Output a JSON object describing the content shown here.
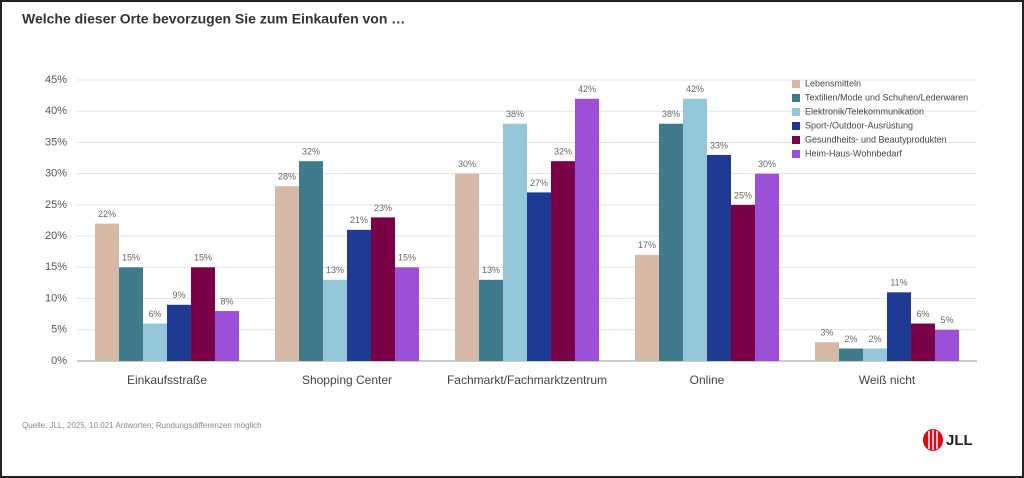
{
  "chart_data": {
    "type": "bar",
    "title": "Welche dieser Orte bevorzugen Sie zum Einkaufen von …",
    "note": "Quelle: JLL, 2025, 10.021 Antworten; Rundungsdifferenzen möglich",
    "categories": [
      "Einkaufsstraße",
      "Shopping Center",
      "Fachmarkt/Fachmarktzentrum",
      "Online",
      "Weiß nicht"
    ],
    "series": [
      {
        "name": "Lebensmitteln",
        "color": "#d5b9a6",
        "values": [
          22,
          28,
          30,
          17,
          3
        ],
        "value_labels": [
          "22%",
          "28%",
          "30%",
          "17%",
          "3%"
        ]
      },
      {
        "name": "Textilien/Mode und Schuhen/Lederwaren",
        "color": "#3f7b8d",
        "values": [
          15,
          32,
          13,
          38,
          2
        ],
        "value_labels": [
          "15%",
          "32%",
          "13%",
          "38%",
          "2%"
        ]
      },
      {
        "name": "Elektronik/Telekommunikation",
        "color": "#94c7d7",
        "values": [
          6,
          13,
          38,
          42,
          2
        ],
        "value_labels": [
          "6%",
          "13%",
          "38%",
          "42%",
          "2%"
        ]
      },
      {
        "name": "Sport-/Outdoor-Ausrüstung",
        "color": "#1f3a93",
        "values": [
          9,
          21,
          27,
          33,
          11
        ],
        "value_labels": [
          "9%",
          "21%",
          "27%",
          "33%",
          "11%"
        ]
      },
      {
        "name": "Gesundheits- und Beautyprodukten",
        "color": "#7a0047",
        "values": [
          15,
          23,
          32,
          25,
          6
        ],
        "value_labels": [
          "15%",
          "23%",
          "32%",
          "25%",
          "6%"
        ]
      },
      {
        "name": "Heim-Haus-Wohnbedarf",
        "color": "#9c50d8",
        "values": [
          8,
          15,
          42,
          30,
          5
        ],
        "value_labels": [
          "8%",
          "15%",
          "42%",
          "30%",
          "5%"
        ]
      }
    ],
    "ylim": [
      0,
      45
    ],
    "yticks": [
      {
        "value": 0,
        "label": "0%"
      },
      {
        "value": 5,
        "label": "5%"
      },
      {
        "value": 10,
        "label": "10%"
      },
      {
        "value": 15,
        "label": "15%"
      },
      {
        "value": 20,
        "label": "20%"
      },
      {
        "value": 25,
        "label": "25%"
      },
      {
        "value": 30,
        "label": "30%"
      },
      {
        "value": 35,
        "label": "35%"
      },
      {
        "value": 40,
        "label": "40%"
      },
      {
        "value": 45,
        "label": "45%"
      }
    ],
    "grid": true,
    "legend": "top-right"
  },
  "logo": "JLL"
}
